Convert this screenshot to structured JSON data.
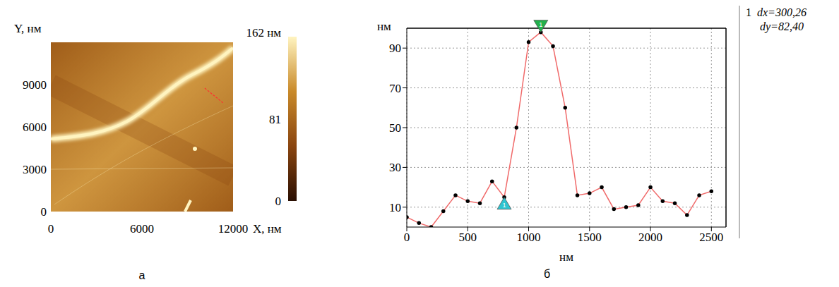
{
  "chart_data": [
    {
      "type": "image",
      "title": "а",
      "x_label": "X, нм",
      "y_label": "Y, нм",
      "xlim": [
        0,
        12000
      ],
      "ylim": [
        0,
        12000
      ],
      "xticks": [
        0,
        6000,
        12000
      ],
      "yticks": [
        0,
        3000,
        6000,
        9000
      ],
      "colorbar": {
        "range": [
          0,
          162
        ],
        "ticks": [
          0,
          81,
          {
            "value": 162,
            "label": "162 нм"
          }
        ],
        "colors": [
          "#2a0f02",
          "#8a4510",
          "#c98a2a",
          "#fff4c0"
        ]
      }
    },
    {
      "type": "line",
      "title": "б",
      "x_label": "нм",
      "y_label": "нм",
      "x": [
        0,
        100,
        200,
        300,
        400,
        500,
        600,
        700,
        800,
        900,
        1000,
        1100,
        1200,
        1300,
        1400,
        1500,
        1600,
        1700,
        1800,
        1900,
        2000,
        2100,
        2200,
        2300,
        2400,
        2500
      ],
      "values": [
        5,
        2,
        0,
        8,
        16,
        13,
        12,
        23,
        15,
        50,
        93,
        98,
        91,
        60,
        16,
        17,
        20,
        9,
        10,
        11,
        20,
        13,
        12,
        6,
        16,
        18
      ],
      "color": "#f06a6a",
      "marker": "circle",
      "xlim": [
        0,
        2620
      ],
      "ylim": [
        0,
        100
      ],
      "xticks": [
        0,
        500,
        1000,
        1500,
        2000,
        2500
      ],
      "yticks": [
        10,
        30,
        50,
        70,
        90
      ],
      "grid": true,
      "markers": [
        {
          "x": 800,
          "y": 15,
          "label": "1",
          "color": "#2ec4d0",
          "marker": "triangle_up"
        },
        {
          "x": 1100,
          "y": 98,
          "label": "1",
          "color": "#22b14c",
          "marker": "triangle_down"
        }
      ],
      "annotations": [
        "1",
        "dx=300,26",
        "dy=82,40"
      ]
    }
  ]
}
